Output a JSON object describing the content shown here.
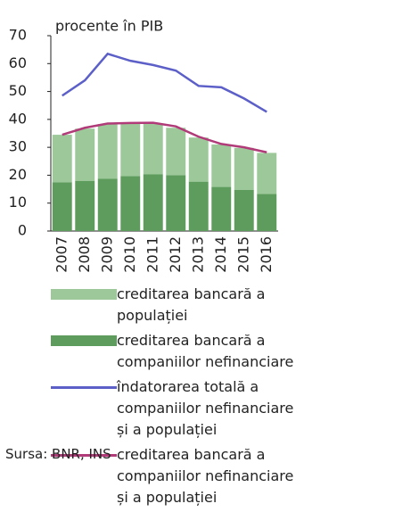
{
  "chart_data": {
    "type": "bar",
    "y_axis_label": "procente în PIB",
    "categories": [
      "2007",
      "2008",
      "2009",
      "2010",
      "2011",
      "2012",
      "2013",
      "2014",
      "2015",
      "2016"
    ],
    "series": [
      {
        "name": "creditarea bancară a populației",
        "color": "#9dc99a",
        "kind": "bar",
        "values": [
          17,
          18.7,
          19.6,
          18.8,
          18.2,
          17,
          15.8,
          15.2,
          15,
          14.7
        ]
      },
      {
        "name": "creditarea bancară a companiilor nefinanciare",
        "color": "#5e9c5e",
        "kind": "bar",
        "values": [
          17.5,
          18,
          18.7,
          19.7,
          20.3,
          20,
          17.7,
          15.8,
          14.8,
          13.3
        ]
      },
      {
        "name": "îndatorarea totală a companiilor nefinanciare și a populației",
        "color": "#5b5fc7",
        "kind": "line",
        "values": [
          48.5,
          54,
          63.5,
          61,
          59.5,
          57.5,
          52,
          51.5,
          47.5,
          42.7
        ]
      },
      {
        "name": "creditarea bancară a companiilor nefinanciare și a populației",
        "color": "#b03b78",
        "kind": "line",
        "values": [
          34.5,
          37,
          38.5,
          38.7,
          38.8,
          37.5,
          33.8,
          31.2,
          30,
          28.2
        ]
      }
    ],
    "ylim": [
      0,
      70
    ],
    "yticks": [
      0,
      10,
      20,
      30,
      40,
      50,
      60,
      70
    ],
    "source": "Sursa: BNR, INS"
  }
}
